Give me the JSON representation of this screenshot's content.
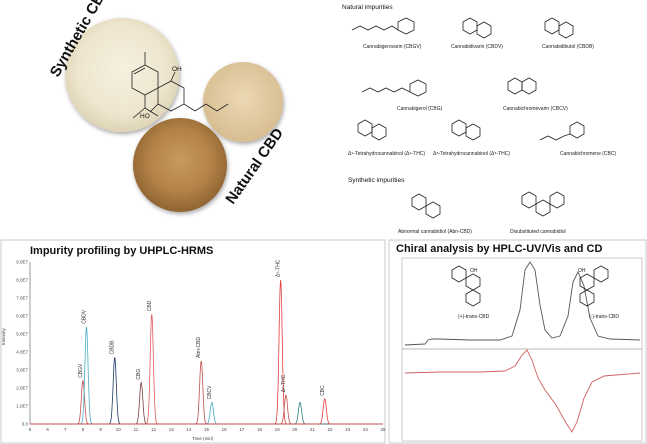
{
  "top_left": {
    "synthetic_label": "Synthetic CBD",
    "natural_label": "Natural CBD",
    "oh_top": "OH",
    "oh_bottom": "HO"
  },
  "natural_impurities": {
    "heading": "Natural impurities",
    "compounds": [
      "Cannabigerovarin (CBGV)",
      "Cannabidivarin (CBDV)",
      "Cannabidibutol (CBDB)",
      "Cannabigerol (CBG)",
      "Cannabichromevarin (CBCV)",
      "Δ⁹-Tetrahydrocannabinol (Δ⁹-THC)",
      "Δ⁸-Tetrahydrocannabinol (Δ⁸-THC)",
      "Cannabichromene (CBC)"
    ]
  },
  "synthetic_impurities": {
    "heading": "Synthetic impurities",
    "compounds": [
      "Abnormal cannabidiol (Abn-CBD)",
      "Disubstituted cannabidiol"
    ]
  },
  "chromatogram_panel": {
    "title": "Impurity profiling by UHPLC-HRMS",
    "ylabel": "Intensity",
    "xlabel": "Time (min)",
    "y_ticks": [
      "9.0E7",
      "8.0E7",
      "7.0E7",
      "6.0E7",
      "5.0E7",
      "4.0E7",
      "3.0E7",
      "2.0E7",
      "1.0E7",
      "0.0"
    ],
    "x_ticks": [
      "5",
      "6",
      "7",
      "8",
      "9",
      "10",
      "11",
      "12",
      "13",
      "14",
      "15",
      "16",
      "17",
      "18",
      "19",
      "20",
      "21",
      "22",
      "23",
      "24",
      "25"
    ],
    "peak_labels": [
      "CBGV",
      "CBDV",
      "CBDB",
      "CBG",
      "CBD",
      "Abn-CBD",
      "CBCV",
      "Δ⁹-THC",
      "Δ⁸-THC",
      "CBC"
    ]
  },
  "chiral_panel": {
    "title": "Chiral analysis by HPLC-UV/Vis and CD",
    "enantiomer_plus": "(+)-trans-CBD",
    "enantiomer_minus": "(-)-trans-CBD",
    "oh": "OH"
  },
  "chart_data": {
    "type": "line",
    "title": "Impurity profiling by UHPLC-HRMS",
    "xlabel": "Time (min)",
    "ylabel": "Intensity",
    "xlim": [
      5,
      25
    ],
    "ylim": [
      0,
      90000000
    ],
    "series": [
      {
        "name": "CBGV",
        "color": "#c0504d",
        "peak_x": 8.0,
        "peak_y": 24000000
      },
      {
        "name": "CBDV",
        "color": "#4bacc6",
        "peak_x": 8.2,
        "peak_y": 54000000
      },
      {
        "name": "CBDB",
        "color": "#1f3864",
        "peak_x": 9.8,
        "peak_y": 37000000
      },
      {
        "name": "CBG",
        "color": "#7f3f3f",
        "peak_x": 11.3,
        "peak_y": 23000000
      },
      {
        "name": "CBD",
        "color": "#e05a5a",
        "peak_x": 11.9,
        "peak_y": 61000000
      },
      {
        "name": "Abn-CBD",
        "color": "#c0504d",
        "peak_x": 14.7,
        "peak_y": 35000000
      },
      {
        "name": "CBCV",
        "color": "#4bacc6",
        "peak_x": 15.3,
        "peak_y": 12000000
      },
      {
        "name": "Δ⁹-THC",
        "color": "#e04040",
        "peak_x": 19.2,
        "peak_y": 80000000
      },
      {
        "name": "Δ⁸-THC",
        "color": "#c0504d",
        "peak_x": 19.5,
        "peak_y": 16000000
      },
      {
        "name": "",
        "color": "#2e7d7d",
        "peak_x": 20.3,
        "peak_y": 12000000
      },
      {
        "name": "CBC",
        "color": "#e04040",
        "peak_x": 21.7,
        "peak_y": 14000000
      }
    ]
  }
}
